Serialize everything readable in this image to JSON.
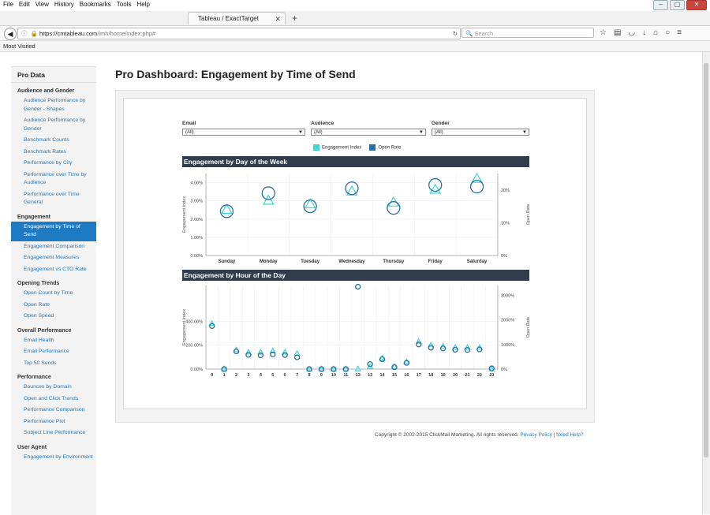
{
  "browser": {
    "menu": [
      "File",
      "Edit",
      "View",
      "History",
      "Bookmarks",
      "Tools",
      "Help"
    ],
    "tab_title": "Tableau / ExactTarget",
    "url_host": "https://cmtableau.com",
    "url_path": "/imh/home/index.php#",
    "search_placeholder": "Search",
    "bookmark": "Most Visited"
  },
  "sidebar": {
    "title": "Pro Data",
    "sections": [
      {
        "title": "Audience and Gender",
        "items": [
          "Audience Performance by Gender - Shapes",
          "Audience Performance by Gender",
          "Benchmark Counts",
          "Benchmark Rates",
          "Performance by City",
          "Performance over Time by Audience",
          "Performance over Time General"
        ]
      },
      {
        "title": "Engagement",
        "items": [
          "Engagement by Time of Send",
          "Engagement Comparison",
          "Engagement Measures",
          "Engagement vs CTO Rate"
        ],
        "active": 0
      },
      {
        "title": "Opening Trends",
        "items": [
          "Open Count by Time",
          "Open Rate",
          "Open Speed"
        ]
      },
      {
        "title": "Overall Performance",
        "items": [
          "Email Health",
          "Email Performance",
          "Top 50 Sends"
        ]
      },
      {
        "title": "Performance",
        "items": [
          "Bounces by Domain",
          "Open and Click Trends",
          "Performance Comparison",
          "Performance Plot",
          "Subject Line Performance"
        ]
      },
      {
        "title": "User Agent",
        "items": [
          "Engagement by Environment"
        ]
      }
    ]
  },
  "page_title": "Pro Dashboard: Engagement by Time of Send",
  "filters": [
    {
      "label": "Email",
      "value": "(All)"
    },
    {
      "label": "Audience",
      "value": "(All)"
    },
    {
      "label": "Gender",
      "value": "(All)"
    }
  ],
  "legend": [
    {
      "label": "Engagement Index",
      "color": "#3ed6d6"
    },
    {
      "label": "Open Rate",
      "color": "#2a6ea6"
    }
  ],
  "colors": {
    "triangle": "#3ed6d6",
    "circle": "#2a6ea6",
    "header": "#2f3d4c"
  },
  "footer": {
    "copyright": "Copyright © 2002-2015 ClickMail Marketing. All rights reserved.",
    "privacy": "Privacy Policy",
    "sep": " | ",
    "help": "Need Help?"
  },
  "chart_data": [
    {
      "type": "scatter",
      "title": "Engagement by Day of the Week",
      "ylabel": "Engagement Index",
      "y2label": "Open Rate",
      "yticks": [
        "4.00%",
        "3.00%",
        "2.00%",
        "1.00%",
        "0.00%"
      ],
      "ylim": [
        0,
        4.5
      ],
      "y2ticks": [
        "20%",
        "10%",
        "0%"
      ],
      "y2lim": [
        0,
        25
      ],
      "categories": [
        "Sunday",
        "Monday",
        "Tuesday",
        "Wednesday",
        "Thursday",
        "Friday",
        "Saturday"
      ],
      "series": [
        {
          "name": "Engagement Index",
          "marker": "triangle",
          "values": [
            2.5,
            3.0,
            2.8,
            3.5,
            2.9,
            3.6,
            4.2
          ]
        },
        {
          "name": "Open Rate",
          "marker": "circle",
          "values": [
            13.5,
            19.0,
            15.0,
            20.5,
            14.5,
            21.5,
            21.0
          ]
        }
      ]
    },
    {
      "type": "scatter",
      "title": "Engagement by Hour of the Day",
      "ylabel": "Engagement Index",
      "y2label": "Open Rate",
      "yticks": [
        "400.00%",
        "200.00%",
        "0.00%"
      ],
      "ylim": [
        0,
        700
      ],
      "y2ticks": [
        "3000%",
        "2000%",
        "1000%",
        "0%"
      ],
      "y2lim": [
        0,
        3400
      ],
      "categories": [
        "0",
        "1",
        "2",
        "3",
        "4",
        "5",
        "6",
        "7",
        "8",
        "9",
        "10",
        "11",
        "12",
        "13",
        "14",
        "15",
        "16",
        "17",
        "18",
        "19",
        "20",
        "21",
        "22",
        "23"
      ],
      "series": [
        {
          "name": "Engagement Index",
          "marker": "triangle",
          "values": [
            380,
            0,
            160,
            140,
            140,
            150,
            140,
            130,
            0,
            0,
            0,
            0,
            0,
            20,
            90,
            20,
            60,
            230,
            200,
            190,
            180,
            180,
            180,
            0
          ]
        },
        {
          "name": "Open Rate",
          "marker": "circle",
          "values": [
            1750,
            0,
            720,
            580,
            560,
            600,
            570,
            480,
            0,
            0,
            0,
            0,
            3350,
            200,
            400,
            80,
            250,
            1000,
            870,
            840,
            790,
            780,
            800,
            30
          ]
        }
      ]
    }
  ]
}
